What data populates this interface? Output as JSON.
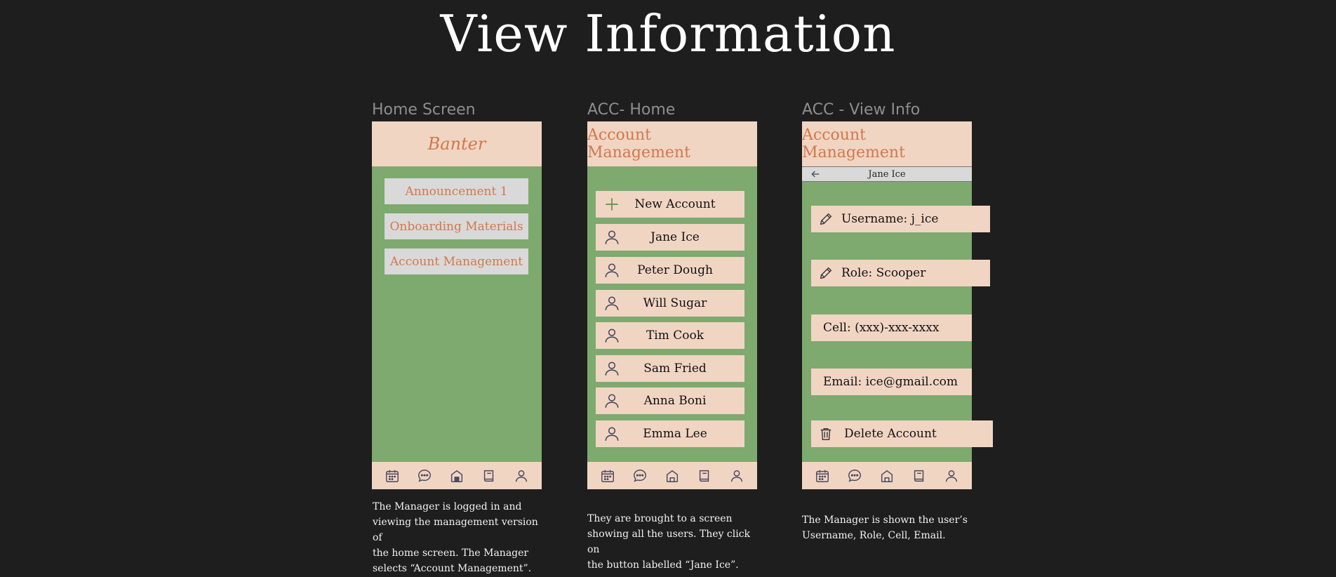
{
  "title": "View Information",
  "screens": [
    {
      "label": "Home Screen",
      "header": "Banter",
      "items": [
        "Announcement 1",
        "Onboarding Materials",
        "Account Management"
      ],
      "caption": [
        "The Manager is logged in and",
        "viewing the management version of",
        "the home screen. The Manager",
        "selects “Account Management”."
      ]
    },
    {
      "label": "ACC- Home",
      "header": "Account Management",
      "new_account": "New Account",
      "users": [
        "Jane Ice",
        "Peter Dough",
        "Will Sugar",
        "Tim Cook",
        "Sam Fried",
        "Anna Boni",
        "Emma Lee"
      ],
      "caption": [
        "They are brought to a screen",
        "showing all the users. They click on",
        "the button labelled “Jane Ice”."
      ]
    },
    {
      "label": "ACC - View Info",
      "header": "Account Management",
      "subbar": "Jane Ice",
      "fields": {
        "username": "Username: j_ice",
        "role": "Role: Scooper",
        "cell": "Cell: (xxx)-xxx-xxxx",
        "email": "Email: ice@gmail.com",
        "delete": "Delete Account"
      },
      "caption": [
        "The Manager is shown the user’s",
        "Username, Role, Cell, Email."
      ]
    }
  ],
  "nav_icons": [
    "calendar-icon",
    "chat-icon",
    "home-icon",
    "book-icon",
    "profile-icon"
  ],
  "colors": {
    "background": "#1e1e1e",
    "header": "#f1d5c3",
    "accent": "#d0784c",
    "body": "#7ea96f",
    "menu_button": "#d9d9d9",
    "icon": "#4a4a5e",
    "plus": "#6a9a5a"
  }
}
